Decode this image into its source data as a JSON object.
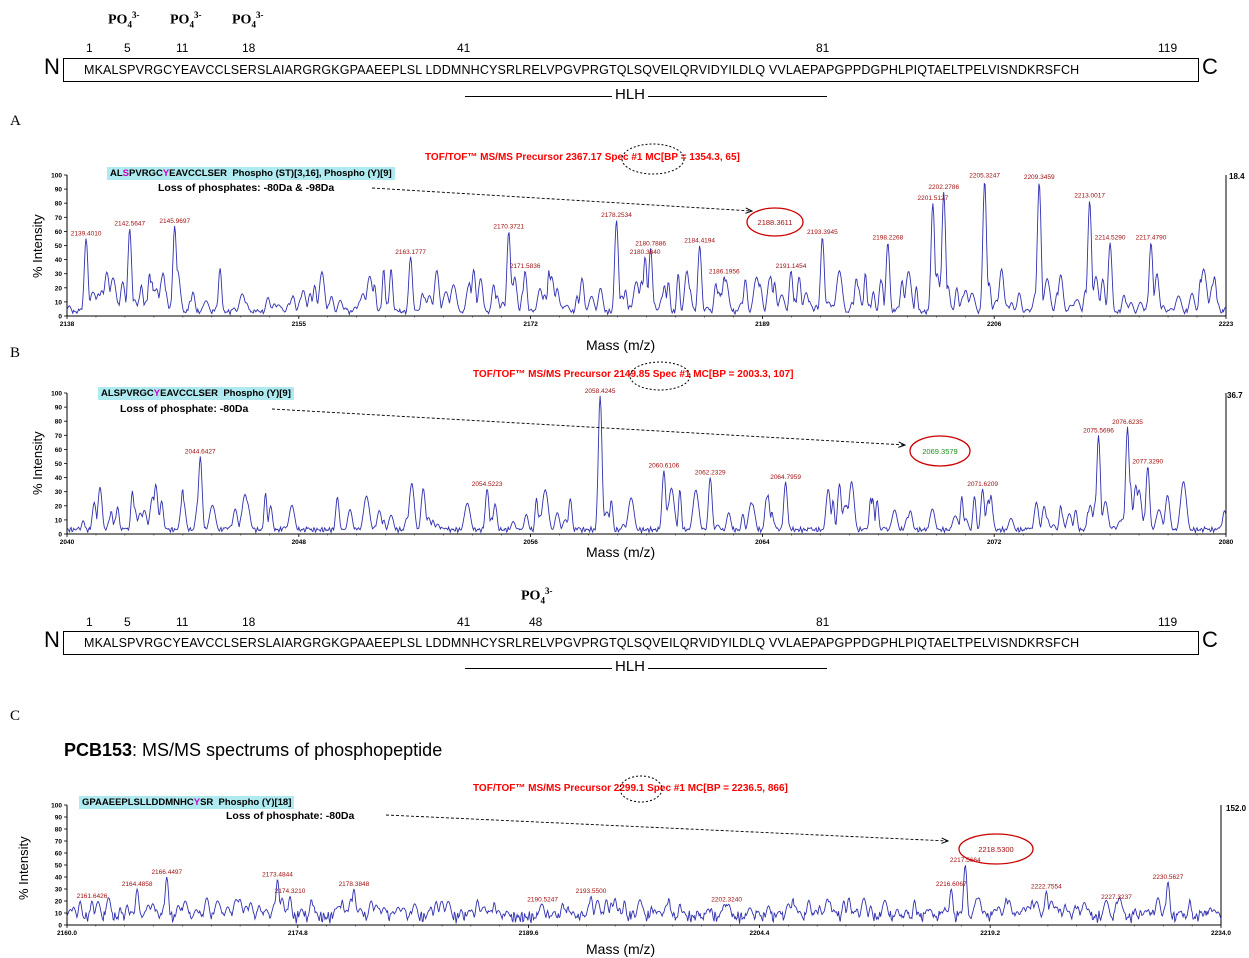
{
  "sequence_top": {
    "n_term": "N",
    "c_term": "C",
    "sequence": "MKALSPVRGCYEAVCCLSERSLAIARGRGKGPAAEEPLSL LDDMNHCYSRLRELVPGVPRGTQLSQVEILQRVIDYILDLQ VVLAEPAPGPPDGPHLPIQTAELTPELVISNDKRSFCH",
    "positions": [
      "1",
      "5",
      "11",
      "18",
      "41",
      "81",
      "119"
    ],
    "phospho_labels": [
      "PO",
      "PO",
      "PO"
    ],
    "phospho_sub": "4",
    "phospho_sup": "3-",
    "hlh": "HLH"
  },
  "sequence_bottom": {
    "n_term": "N",
    "c_term": "C",
    "sequence": "MKALSPVRGCYEAVCCLSERSLAIARGRGKGPAAEEPLSL LDDMNHCYSRLRELVPGVPRGTQLSQVEILQRVIDYILDLQ VVLAEPAPGPPDGPHLPIQTAELTPELVISNDKRSFCH",
    "positions": [
      "1",
      "5",
      "11",
      "18",
      "41",
      "48",
      "81",
      "119"
    ],
    "phospho_labels": [
      "PO"
    ],
    "phospho_sub": "4",
    "phospho_sup": "3-",
    "hlh": "HLH"
  },
  "panel_labels": {
    "a": "A",
    "b": "B",
    "c": "C"
  },
  "pcb": {
    "bold": "PCB153",
    "rest": ": MS/MS spectrums of phosphopeptide"
  },
  "spectra": {
    "A": {
      "title": "TOF/TOF™ MS/MS Precursor 2367.17 Spec #1 MC[BP = 1354.3, 65]",
      "peptide_parts": [
        "AL",
        "S",
        "PVRGC",
        "Y",
        "EAVCCLSER"
      ],
      "modification": "Phospho (ST)[3,16], Phospho (Y)[9]",
      "loss": "Loss of phosphates: -80Da & -98Da",
      "right_max": "18.4",
      "xlabel": "Mass (m/z)",
      "ylabel": "% Intensity"
    },
    "B": {
      "title": "TOF/TOF™ MS/MS Precursor 2149.85 Spec #1 MC[BP = 2003.3, 107]",
      "peptide_parts": [
        "ALSPVRGC",
        "Y",
        "EAVCCLSER"
      ],
      "modification": "Phospho (Y)[9]",
      "loss": "Loss of phosphate: -80Da",
      "right_max": "36.7",
      "xlabel": "Mass (m/z)",
      "ylabel": "% Intensity"
    },
    "C": {
      "title": "TOF/TOF™ MS/MS Precursor 2299.1 Spec #1 MC[BP = 2236.5, 866]",
      "peptide_parts": [
        "GPAAEEPLSLLDDMNHC",
        "Y",
        "SR"
      ],
      "modification": "Phospho (Y)[18]",
      "loss": "Loss of phosphate: -80Da",
      "right_max": "152.0",
      "xlabel": "Mass (m/z)",
      "ylabel": "% Intensity"
    }
  },
  "chart_data": [
    {
      "type": "line",
      "panel": "A",
      "xlim": [
        2138,
        2223
      ],
      "ylim": [
        0,
        100
      ],
      "x_ticks": [
        "2138",
        "2155",
        "2172",
        "2189",
        "2206",
        "2223"
      ],
      "y_ticks": [
        "0",
        "10",
        "20",
        "30",
        "40",
        "50",
        "60",
        "70",
        "80",
        "90",
        "100"
      ],
      "highlight": {
        "label": "2188.3611",
        "x": 2188.4
      },
      "peaks": [
        {
          "x": 2139.4,
          "y": 55,
          "label": "2139.4010"
        },
        {
          "x": 2142.6,
          "y": 62,
          "label": "2142.5647"
        },
        {
          "x": 2145.9,
          "y": 64,
          "label": "2145.9697"
        },
        {
          "x": 2163.2,
          "y": 42,
          "label": "2163.1777"
        },
        {
          "x": 2170.4,
          "y": 60,
          "label": "2170.3721"
        },
        {
          "x": 2171.6,
          "y": 32,
          "label": "2171.5836"
        },
        {
          "x": 2178.3,
          "y": 68,
          "label": "2178.2534"
        },
        {
          "x": 2180.4,
          "y": 42,
          "label": "2180.3840"
        },
        {
          "x": 2180.8,
          "y": 48,
          "label": "2180.7886"
        },
        {
          "x": 2184.4,
          "y": 50,
          "label": "2184.4194"
        },
        {
          "x": 2186.2,
          "y": 28,
          "label": "2186.1956"
        },
        {
          "x": 2191.1,
          "y": 32,
          "label": "2191.1454"
        },
        {
          "x": 2193.4,
          "y": 56,
          "label": "2193.3945"
        },
        {
          "x": 2198.2,
          "y": 52,
          "label": "2198.2268"
        },
        {
          "x": 2201.5,
          "y": 80,
          "label": "2201.5127"
        },
        {
          "x": 2202.3,
          "y": 88,
          "label": "2202.2786"
        },
        {
          "x": 2205.3,
          "y": 96,
          "label": "2205.3247"
        },
        {
          "x": 2209.3,
          "y": 95,
          "label": "2209.3459"
        },
        {
          "x": 2213.0,
          "y": 82,
          "label": "2213.0017"
        },
        {
          "x": 2214.5,
          "y": 52,
          "label": "2214.5290"
        },
        {
          "x": 2217.5,
          "y": 52,
          "label": "2217.4790"
        }
      ]
    },
    {
      "type": "line",
      "panel": "B",
      "xlim": [
        2040,
        2080
      ],
      "ylim": [
        0,
        100
      ],
      "x_ticks": [
        "2040",
        "2048",
        "2056",
        "2064",
        "2072",
        "2080"
      ],
      "y_ticks": [
        "0",
        "10",
        "20",
        "30",
        "40",
        "50",
        "60",
        "70",
        "80",
        "90",
        "100"
      ],
      "highlight": {
        "label": "2069.3579",
        "x": 2069.4
      },
      "peaks": [
        {
          "x": 2044.6,
          "y": 55,
          "label": "2044.6427"
        },
        {
          "x": 2054.5,
          "y": 32,
          "label": "2054.5223"
        },
        {
          "x": 2058.4,
          "y": 98,
          "label": "2058.4245"
        },
        {
          "x": 2060.6,
          "y": 45,
          "label": "2060.6106"
        },
        {
          "x": 2062.2,
          "y": 40,
          "label": "2062.2329"
        },
        {
          "x": 2064.8,
          "y": 37,
          "label": "2064.7959"
        },
        {
          "x": 2071.6,
          "y": 32,
          "label": "2071.6209"
        },
        {
          "x": 2075.6,
          "y": 70,
          "label": "2075.5696"
        },
        {
          "x": 2076.6,
          "y": 76,
          "label": "2076.6235"
        },
        {
          "x": 2077.3,
          "y": 48,
          "label": "2077.3290"
        }
      ]
    },
    {
      "type": "line",
      "panel": "C",
      "xlim": [
        2160,
        2234
      ],
      "ylim": [
        0,
        100
      ],
      "x_ticks": [
        "2160.0",
        "2174.8",
        "2189.6",
        "2204.4",
        "2219.2",
        "2234.0"
      ],
      "y_ticks": [
        "0",
        "10",
        "20",
        "30",
        "40",
        "50",
        "60",
        "70",
        "80",
        "90",
        "100"
      ],
      "highlight": {
        "label": "2218.5300",
        "x": 2218.5
      },
      "peaks": [
        {
          "x": 2161.6,
          "y": 20,
          "label": "2161.6426"
        },
        {
          "x": 2164.5,
          "y": 30,
          "label": "2164.4858"
        },
        {
          "x": 2166.4,
          "y": 40,
          "label": "2166.4497"
        },
        {
          "x": 2173.5,
          "y": 38,
          "label": "2173.4844"
        },
        {
          "x": 2174.3,
          "y": 24,
          "label": "2174.3210"
        },
        {
          "x": 2178.4,
          "y": 30,
          "label": "2178.3848"
        },
        {
          "x": 2190.5,
          "y": 17,
          "label": "2190.5247"
        },
        {
          "x": 2193.6,
          "y": 24,
          "label": "2193.5500"
        },
        {
          "x": 2202.3,
          "y": 17,
          "label": "2202.3240"
        },
        {
          "x": 2216.7,
          "y": 30,
          "label": "2216.6067"
        },
        {
          "x": 2217.6,
          "y": 50,
          "label": "2217.5664"
        },
        {
          "x": 2222.8,
          "y": 28,
          "label": "2222.7554"
        },
        {
          "x": 2227.3,
          "y": 19,
          "label": "2227.3237"
        },
        {
          "x": 2230.6,
          "y": 36,
          "label": "2230.5627"
        }
      ]
    }
  ]
}
